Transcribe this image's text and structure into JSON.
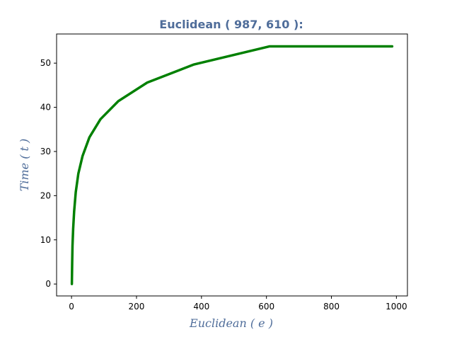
{
  "chart_data": {
    "type": "line",
    "title": "Euclidean ( 987, 610 ):",
    "xlabel": "Euclidean ( e )",
    "ylabel": "Time ( t )",
    "xlim": [
      -46,
      1034
    ],
    "ylim": [
      -2.7,
      56.6
    ],
    "xticks": [
      0,
      200,
      400,
      600,
      800,
      1000
    ],
    "yticks": [
      0,
      10,
      20,
      30,
      40,
      50
    ],
    "grid": false,
    "series": [
      {
        "color": "#008000",
        "x": [
          1,
          2,
          3,
          5,
          8,
          13,
          21,
          34,
          55,
          89,
          144,
          233,
          377,
          610,
          987
        ],
        "y": [
          0,
          4.8,
          8.7,
          12.5,
          16.4,
          20.8,
          25.0,
          29.0,
          33.2,
          37.3,
          41.4,
          45.6,
          49.7,
          53.8,
          53.8
        ]
      }
    ],
    "colors": {
      "title": "#4f6d9a",
      "axis_label": "#4f6d9a",
      "line": "#008000",
      "frame": "#000000"
    }
  }
}
